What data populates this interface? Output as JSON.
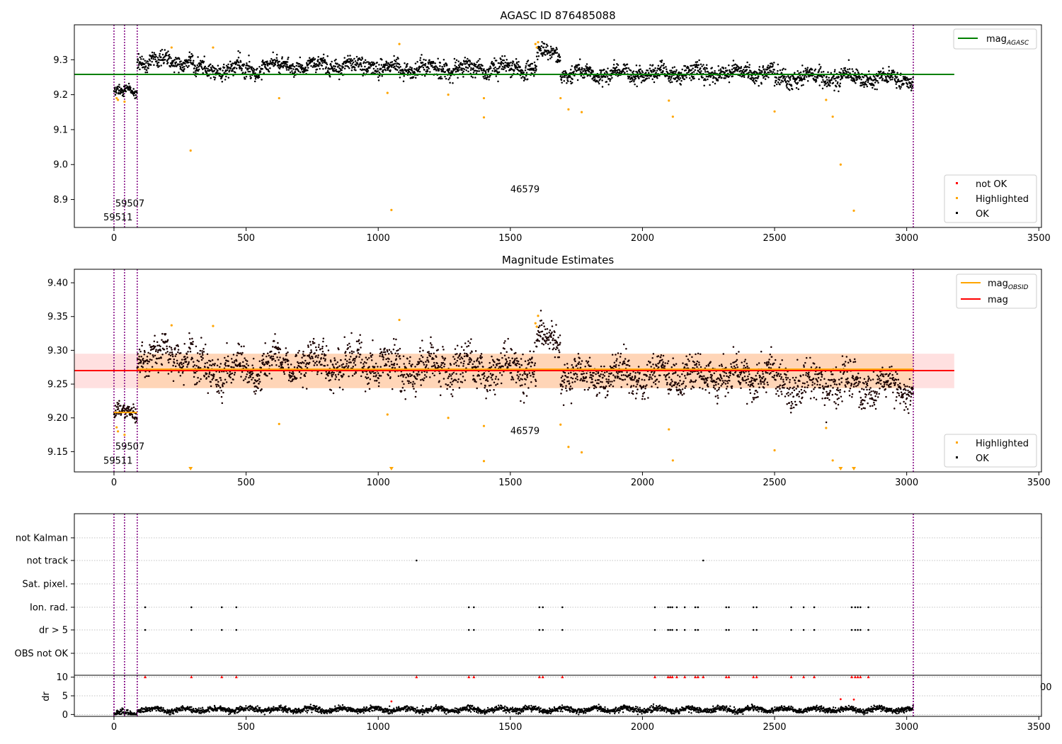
{
  "chart_data": [
    {
      "type": "scatter",
      "title": "AGASC ID 876485088",
      "xlabel": "",
      "ylabel": "",
      "xlim": [
        -150,
        3510
      ],
      "ylim": [
        8.82,
        9.4
      ],
      "xticks": [
        0,
        500,
        1000,
        1500,
        2000,
        2500,
        3000,
        3500
      ],
      "yticks": [
        8.9,
        9.0,
        9.1,
        9.2,
        9.3
      ],
      "grid": false,
      "obs_boundaries_x": [
        0,
        40,
        88,
        3025
      ],
      "annotations": [
        {
          "text": "59507",
          "x": 5,
          "y": 8.88
        },
        {
          "text": "59511",
          "x": -40,
          "y": 8.84
        },
        {
          "text": "46579",
          "x": 1500,
          "y": 8.92
        }
      ],
      "lines": [
        {
          "name": "mag_AGASC",
          "label_main": "mag",
          "label_sub": "AGASC",
          "y": 9.258,
          "x": [
            -150,
            3180
          ],
          "color": "#008000"
        }
      ],
      "segments_y": [
        {
          "x0": 0,
          "x1": 88,
          "level": 9.208,
          "noise": 0.009
        },
        {
          "x0": 88,
          "x1": 300,
          "level": 9.295,
          "noise": 0.014
        },
        {
          "x0": 300,
          "x1": 560,
          "level": 9.272,
          "noise": 0.016
        },
        {
          "x0": 560,
          "x1": 1000,
          "level": 9.283,
          "noise": 0.015
        },
        {
          "x0": 1000,
          "x1": 1600,
          "level": 9.275,
          "noise": 0.016
        },
        {
          "x0": 1600,
          "x1": 1690,
          "level": 9.318,
          "noise": 0.014
        },
        {
          "x0": 1690,
          "x1": 2500,
          "level": 9.262,
          "noise": 0.015
        },
        {
          "x0": 2500,
          "x1": 2800,
          "level": 9.248,
          "noise": 0.017
        },
        {
          "x0": 2800,
          "x1": 3025,
          "level": 9.246,
          "noise": 0.014
        }
      ],
      "highlighted_points": [
        [
          10,
          9.19
        ],
        [
          15,
          9.185
        ],
        [
          40,
          9.18
        ],
        [
          218,
          9.335
        ],
        [
          290,
          9.04
        ],
        [
          375,
          9.335
        ],
        [
          625,
          9.19
        ],
        [
          1035,
          9.205
        ],
        [
          1050,
          8.87
        ],
        [
          1080,
          9.345
        ],
        [
          1265,
          9.2
        ],
        [
          1400,
          9.19
        ],
        [
          1400,
          9.135
        ],
        [
          1595,
          9.345
        ],
        [
          1600,
          9.335
        ],
        [
          1605,
          9.35
        ],
        [
          1690,
          9.19
        ],
        [
          1720,
          9.158
        ],
        [
          1770,
          9.15
        ],
        [
          2100,
          9.183
        ],
        [
          2115,
          9.137
        ],
        [
          2500,
          9.152
        ],
        [
          2695,
          9.185
        ],
        [
          2720,
          9.137
        ],
        [
          2750,
          9.0
        ],
        [
          2800,
          8.868
        ]
      ],
      "legend": {
        "placement": "lower-right",
        "entries": [
          {
            "name": "not OK",
            "color": "#ff0000"
          },
          {
            "name": "Highlighted",
            "color": "#ffa500"
          },
          {
            "name": "OK",
            "color": "#000000"
          }
        ]
      },
      "series_legend_placement": "upper-right"
    },
    {
      "type": "scatter",
      "title": "Magnitude Estimates",
      "xlabel": "",
      "ylabel": "",
      "xlim": [
        -150,
        3510
      ],
      "ylim": [
        9.12,
        9.42
      ],
      "xticks": [
        0,
        500,
        1000,
        1500,
        2000,
        2500,
        3000,
        3500
      ],
      "yticks": [
        9.15,
        9.2,
        9.25,
        9.3,
        9.35,
        9.4
      ],
      "grid": false,
      "obs_boundaries_x": [
        0,
        40,
        88,
        3025
      ],
      "annotations": [
        {
          "text": "59507",
          "x": 5,
          "y": 9.153
        },
        {
          "text": "59511",
          "x": -40,
          "y": 9.132
        },
        {
          "text": "46579",
          "x": 1500,
          "y": 9.176
        }
      ],
      "band": {
        "y0": 9.244,
        "y1": 9.295,
        "x": [
          -150,
          3180
        ]
      },
      "inner_band": {
        "y0": 9.244,
        "y1": 9.295,
        "x": [
          88,
          3025
        ]
      },
      "lines": [
        {
          "name": "mag_OBSID",
          "label_main": "mag",
          "label_sub": "OBSID",
          "color": "#ffa500",
          "steps": [
            [
              0,
              88,
              9.208
            ],
            [
              88,
              3025,
              9.272
            ]
          ]
        },
        {
          "name": "mag",
          "label_main": "mag",
          "label_sub": "",
          "color": "#ff0000",
          "y": 9.27,
          "x": [
            -150,
            3180
          ]
        }
      ],
      "segments_y": [
        {
          "x0": 0,
          "x1": 88,
          "level": 9.207,
          "noise": 0.008
        },
        {
          "x0": 88,
          "x1": 300,
          "level": 9.292,
          "noise": 0.016
        },
        {
          "x0": 300,
          "x1": 560,
          "level": 9.27,
          "noise": 0.018
        },
        {
          "x0": 560,
          "x1": 1000,
          "level": 9.281,
          "noise": 0.017
        },
        {
          "x0": 1000,
          "x1": 1600,
          "level": 9.275,
          "noise": 0.018
        },
        {
          "x0": 1600,
          "x1": 1690,
          "level": 9.318,
          "noise": 0.015
        },
        {
          "x0": 1690,
          "x1": 2500,
          "level": 9.262,
          "noise": 0.017
        },
        {
          "x0": 2500,
          "x1": 2800,
          "level": 9.25,
          "noise": 0.02
        },
        {
          "x0": 2800,
          "x1": 3025,
          "level": 9.246,
          "noise": 0.016
        }
      ],
      "highlighted_points": [
        [
          10,
          9.186
        ],
        [
          15,
          9.18
        ],
        [
          40,
          9.175
        ],
        [
          218,
          9.337
        ],
        [
          375,
          9.336
        ],
        [
          625,
          9.191
        ],
        [
          1035,
          9.205
        ],
        [
          1080,
          9.345
        ],
        [
          1265,
          9.2
        ],
        [
          1400,
          9.188
        ],
        [
          1400,
          9.136
        ],
        [
          1595,
          9.34
        ],
        [
          1600,
          9.335
        ],
        [
          1605,
          9.351
        ],
        [
          1690,
          9.19
        ],
        [
          1720,
          9.157
        ],
        [
          1770,
          9.149
        ],
        [
          2100,
          9.183
        ],
        [
          2115,
          9.137
        ],
        [
          2500,
          9.152
        ],
        [
          2695,
          9.185
        ],
        [
          2720,
          9.137
        ]
      ],
      "offscale_low_x": [
        290,
        1050,
        2750,
        2800
      ],
      "legend": {
        "placement": "lower-right",
        "entries": [
          {
            "name": "Highlighted",
            "color": "#ffa500"
          },
          {
            "name": "OK",
            "color": "#000000"
          }
        ]
      },
      "series_legend_placement": "upper-right"
    },
    {
      "type": "scatter",
      "title": "",
      "xlabel": "",
      "ylabel": "",
      "xlim": [
        -150,
        3510
      ],
      "categories": [
        "not Kalman",
        "not track",
        "Sat. pixel.",
        "Ion. rad.",
        "dr > 5",
        "OBS not OK"
      ],
      "grid": true,
      "obs_boundaries_x": [
        0,
        40,
        88,
        3025
      ],
      "flags": {
        "not track": [
          1145,
          2230
        ],
        "Ion. rad.": [
          118,
          293,
          408,
          463,
          1343,
          1362,
          1610,
          1623,
          1697,
          2047,
          2097,
          2105,
          2113,
          2130,
          2160,
          2200,
          2210,
          2317,
          2327,
          2420,
          2432,
          2563,
          2610,
          2650,
          2792,
          2805,
          2815,
          2825,
          2855
        ],
        "dr > 5": [
          118,
          293,
          408,
          463,
          1343,
          1362,
          1610,
          1623,
          1697,
          2047,
          2097,
          2105,
          2113,
          2130,
          2160,
          2200,
          2210,
          2317,
          2327,
          2420,
          2432,
          2563,
          2610,
          2650,
          2792,
          2805,
          2815,
          2825,
          2855
        ]
      }
    },
    {
      "type": "scatter",
      "title": "",
      "xlabel": "",
      "ylabel": "dr",
      "xlim": [
        -150,
        3510
      ],
      "ylim": [
        -0.5,
        10.5
      ],
      "xticks": [
        0,
        500,
        1000,
        1500,
        2000,
        2500,
        3000,
        3500
      ],
      "yticks": [
        0,
        5,
        10
      ],
      "grid": true,
      "obs_boundaries_x": [
        0,
        40,
        88,
        3025
      ],
      "stray_tick_label": "00",
      "red_markers_at_10_x": [
        118,
        293,
        408,
        463,
        1145,
        1343,
        1362,
        1610,
        1623,
        1697,
        2047,
        2097,
        2105,
        2113,
        2130,
        2160,
        2200,
        2210,
        2230,
        2317,
        2327,
        2420,
        2432,
        2563,
        2610,
        2650,
        2792,
        2805,
        2815,
        2825,
        2855
      ],
      "red_points": [
        [
          1050,
          3.5
        ],
        [
          2750,
          4.1
        ],
        [
          2800,
          4.0
        ]
      ],
      "dr_level": 1.3,
      "dr_noise": 0.45
    }
  ]
}
